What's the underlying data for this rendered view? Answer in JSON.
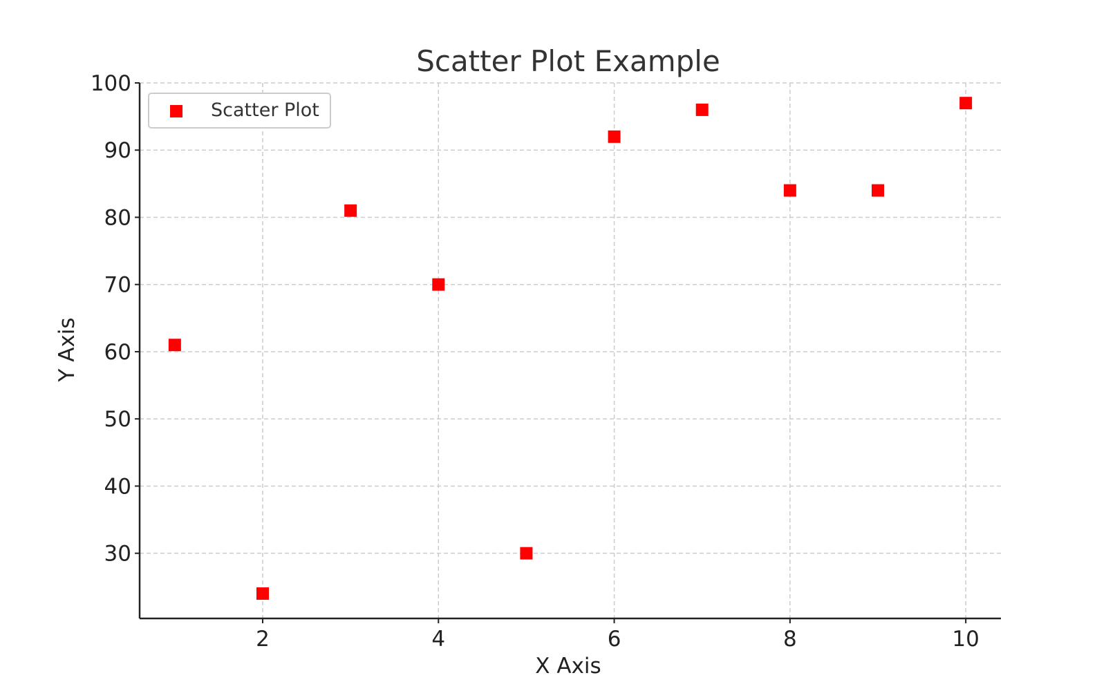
{
  "chart_data": {
    "type": "scatter",
    "title": "Scatter Plot Example",
    "xlabel": "X Axis",
    "ylabel": "Y Axis",
    "xlim": [
      0.6,
      10.4
    ],
    "ylim": [
      20.3,
      100
    ],
    "xticks": [
      2,
      4,
      6,
      8,
      10
    ],
    "yticks": [
      30,
      40,
      50,
      60,
      70,
      80,
      90,
      100
    ],
    "grid": true,
    "legend_position": "top-left",
    "series": [
      {
        "name": "Scatter Plot",
        "marker": "square",
        "color": "#ff0000",
        "x": [
          1,
          2,
          3,
          4,
          5,
          6,
          7,
          8,
          9,
          10
        ],
        "y": [
          61,
          24,
          81,
          70,
          30,
          92,
          96,
          84,
          84,
          97
        ]
      }
    ]
  }
}
